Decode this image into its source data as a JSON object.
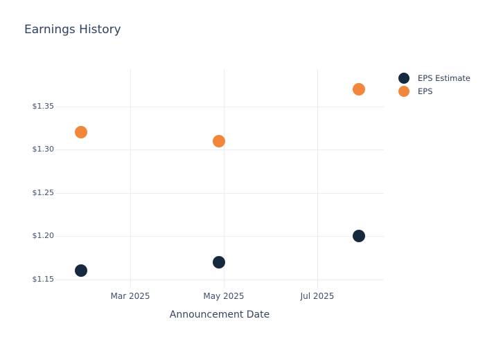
{
  "chart": {
    "background_color": "#ffffff",
    "gridline_color": "#e9edf4",
    "title_color": "#2b3f63",
    "tick_label_color": "#3f4e69"
  },
  "chart_data": {
    "type": "scatter",
    "title": "Earnings History",
    "xlabel": "Announcement Date",
    "ylabel": "",
    "grid": true,
    "legend_position": "top-right",
    "x_ticks": [
      {
        "label": "Mar 2025",
        "date": "2025-03-01"
      },
      {
        "label": "May 2025",
        "date": "2025-05-01"
      },
      {
        "label": "Jul 2025",
        "date": "2025-07-01"
      }
    ],
    "y_ticks": [
      {
        "label": "$1.15",
        "value": 1.15
      },
      {
        "label": "$1.20",
        "value": 1.2
      },
      {
        "label": "$1.25",
        "value": 1.25
      },
      {
        "label": "$1.30",
        "value": 1.3
      },
      {
        "label": "$1.35",
        "value": 1.35
      }
    ],
    "y_domain": [
      1.14,
      1.39
    ],
    "x_domain": [
      "2025-01-11",
      "2025-08-13"
    ],
    "series": [
      {
        "name": "EPS Estimate",
        "color": "#16293f",
        "marker_size_px": 18,
        "points": [
          {
            "x": "2025-01-28",
            "y": 1.16
          },
          {
            "x": "2025-04-28",
            "y": 1.17
          },
          {
            "x": "2025-07-28",
            "y": 1.2
          }
        ]
      },
      {
        "name": "EPS",
        "color": "#f2873c",
        "marker_size_px": 18,
        "points": [
          {
            "x": "2025-01-28",
            "y": 1.32
          },
          {
            "x": "2025-04-28",
            "y": 1.31
          },
          {
            "x": "2025-07-28",
            "y": 1.37
          }
        ]
      }
    ]
  }
}
